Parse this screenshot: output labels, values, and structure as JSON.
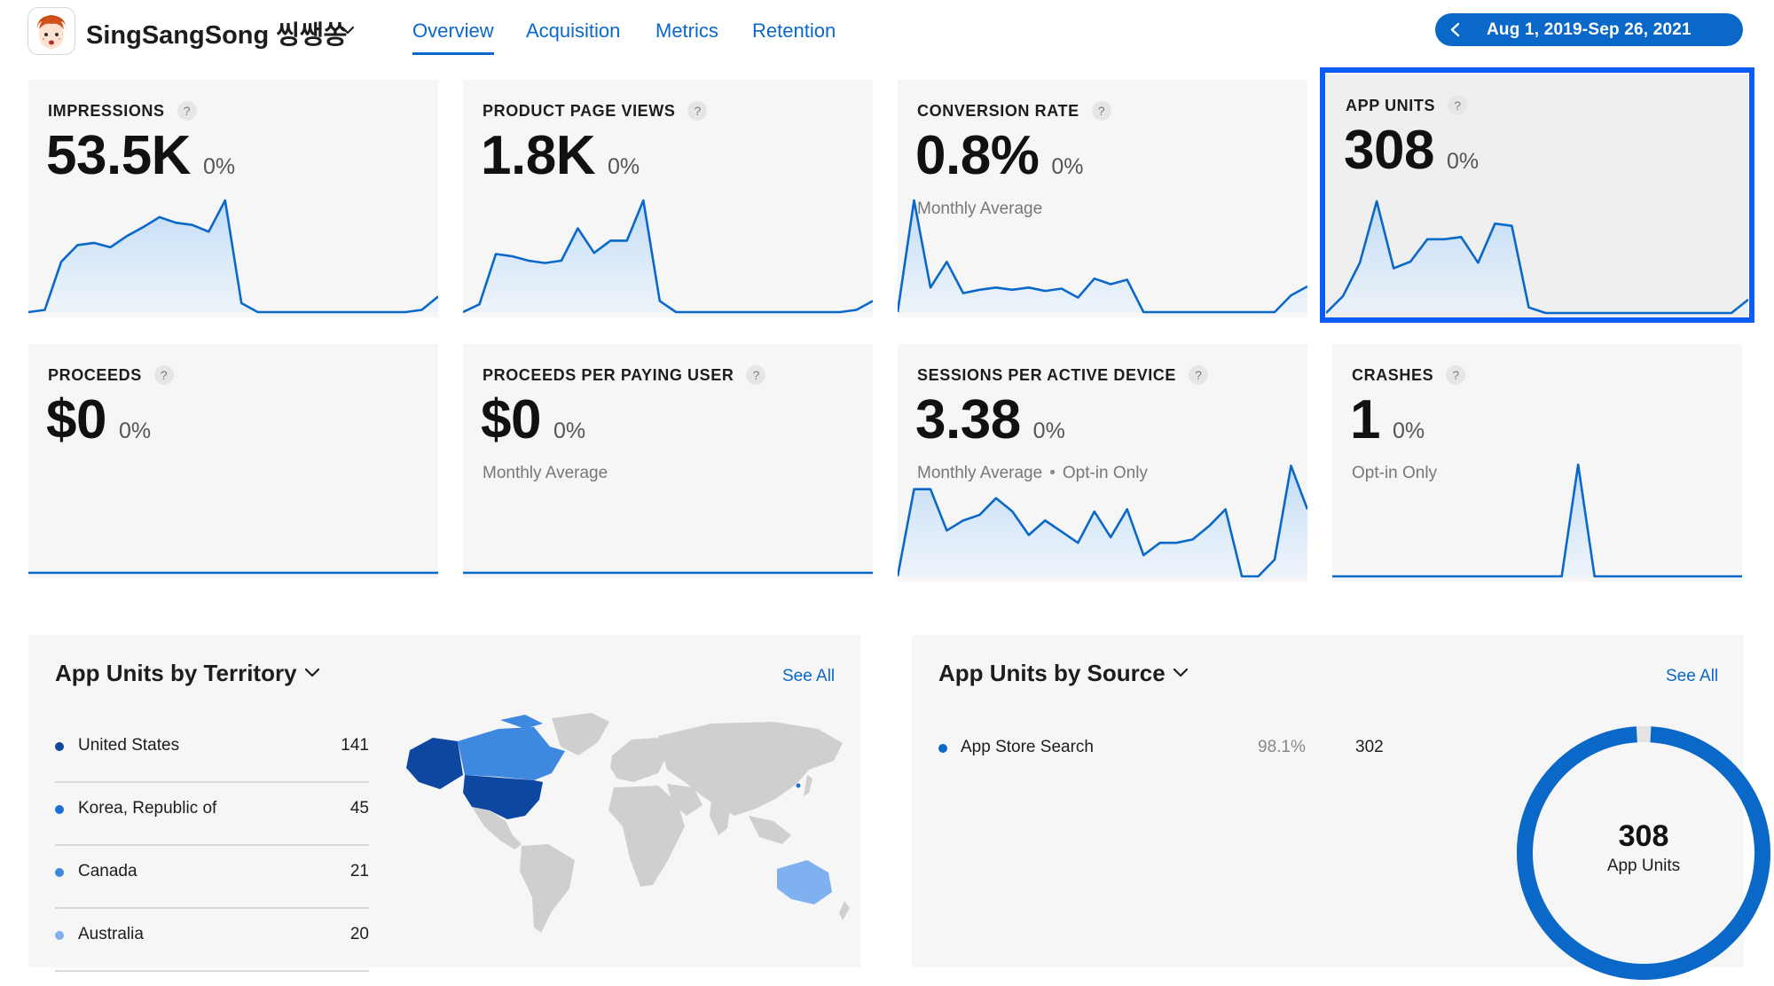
{
  "header": {
    "app_name": "SingSangSong 씽쌩쏭",
    "tabs": [
      {
        "label": "Overview",
        "active": true
      },
      {
        "label": "Acquisition",
        "active": false
      },
      {
        "label": "Metrics",
        "active": false
      },
      {
        "label": "Retention",
        "active": false
      }
    ],
    "date_range": "Aug 1, 2019-Sep 26, 2021",
    "accent_color": "#0a68c9"
  },
  "metrics": [
    {
      "label": "IMPRESSIONS",
      "value": "53.5K",
      "change": "0%",
      "subtitle": "",
      "subtitle_extra": "",
      "series": [
        0,
        0.02,
        0.45,
        0.6,
        0.62,
        0.58,
        0.68,
        0.76,
        0.85,
        0.8,
        0.78,
        0.72,
        1.0,
        0.08,
        0,
        0,
        0,
        0,
        0,
        0,
        0,
        0,
        0,
        0,
        0.02,
        0.14
      ]
    },
    {
      "label": "PRODUCT PAGE VIEWS",
      "value": "1.8K",
      "change": "0%",
      "subtitle": "",
      "subtitle_extra": "",
      "series": [
        0,
        0.07,
        0.52,
        0.5,
        0.46,
        0.44,
        0.46,
        0.75,
        0.53,
        0.64,
        0.64,
        1.0,
        0.1,
        0,
        0,
        0,
        0,
        0,
        0,
        0,
        0,
        0,
        0,
        0,
        0.02,
        0.1
      ]
    },
    {
      "label": "CONVERSION RATE",
      "value": "0.8%",
      "change": "0%",
      "subtitle": "Monthly Average",
      "subtitle_extra": "",
      "series": [
        0,
        1.0,
        0.22,
        0.45,
        0.17,
        0.2,
        0.22,
        0.2,
        0.22,
        0.19,
        0.21,
        0.13,
        0.3,
        0.25,
        0.29,
        0,
        0,
        0,
        0,
        0,
        0,
        0,
        0,
        0,
        0.15,
        0.23
      ]
    },
    {
      "label": "APP UNITS",
      "value": "308",
      "change": "0%",
      "subtitle": "",
      "subtitle_extra": "",
      "series": [
        0,
        0.15,
        0.45,
        1.0,
        0.4,
        0.46,
        0.66,
        0.66,
        0.68,
        0.45,
        0.8,
        0.78,
        0.05,
        0,
        0,
        0,
        0,
        0,
        0,
        0,
        0,
        0,
        0,
        0,
        0,
        0.12
      ]
    },
    {
      "label": "PROCEEDS",
      "value": "$0",
      "change": "0%",
      "subtitle": "",
      "subtitle_extra": "",
      "series": [
        0,
        0,
        0,
        0,
        0,
        0,
        0,
        0,
        0,
        0,
        0,
        0,
        0,
        0,
        0,
        0,
        0,
        0,
        0,
        0,
        0,
        0,
        0,
        0,
        0,
        0
      ]
    },
    {
      "label": "PROCEEDS PER PAYING USER",
      "value": "$0",
      "change": "0%",
      "subtitle": "Monthly Average",
      "subtitle_extra": "",
      "series": [
        0,
        0,
        0,
        0,
        0,
        0,
        0,
        0,
        0,
        0,
        0,
        0,
        0,
        0,
        0,
        0,
        0,
        0,
        0,
        0,
        0,
        0,
        0,
        0,
        0,
        0
      ]
    },
    {
      "label": "SESSIONS PER ACTIVE DEVICE",
      "value": "3.38",
      "change": "0%",
      "subtitle": "Monthly Average",
      "subtitle_extra": "Opt-in Only",
      "series": [
        0,
        0.78,
        0.78,
        0.41,
        0.5,
        0.55,
        0.7,
        0.58,
        0.37,
        0.5,
        0.4,
        0.3,
        0.58,
        0.35,
        0.6,
        0.19,
        0.3,
        0.3,
        0.33,
        0.45,
        0.6,
        0.0,
        0.0,
        0.15,
        0.99,
        0.6
      ]
    },
    {
      "label": "CRASHES",
      "value": "1",
      "change": "0%",
      "subtitle": "Opt-in Only",
      "subtitle_extra": "",
      "series": [
        0,
        0,
        0,
        0,
        0,
        0,
        0,
        0,
        0,
        0,
        0,
        0,
        0,
        0,
        0,
        1.0,
        0,
        0,
        0,
        0,
        0,
        0,
        0,
        0,
        0,
        0
      ]
    }
  ],
  "territory_panel": {
    "title": "App Units by Territory",
    "see_all": "See All",
    "rows": [
      {
        "name": "United States",
        "value": "141",
        "color": "#0d47a1"
      },
      {
        "name": "Korea, Republic of",
        "value": "45",
        "color": "#1c6fd6"
      },
      {
        "name": "Canada",
        "value": "21",
        "color": "#3e88df"
      },
      {
        "name": "Australia",
        "value": "20",
        "color": "#7fb0f0"
      }
    ]
  },
  "source_panel": {
    "title": "App Units by Source",
    "see_all": "See All",
    "source_name": "App Store Search",
    "source_pct": "98.1%",
    "source_value": "302",
    "donut_total": "308",
    "donut_label": "App Units",
    "donut_share": 0.981
  }
}
